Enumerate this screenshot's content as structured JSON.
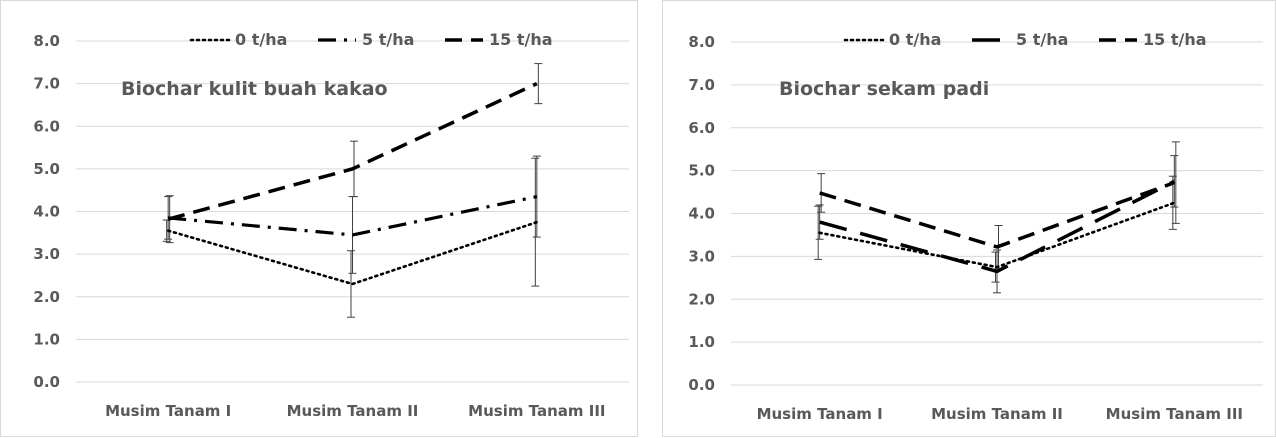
{
  "chart_data": [
    {
      "type": "line",
      "annotation": "Biochar kulit buah kakao",
      "categories": [
        "Musim Tanam I",
        "Musim Tanam II",
        "Musim Tanam III"
      ],
      "ylim": [
        0,
        8
      ],
      "yticks": [
        "0.0",
        "1.0",
        "2.0",
        "3.0",
        "4.0",
        "5.0",
        "6.0",
        "7.0",
        "8.0"
      ],
      "grid": true,
      "legend_position": "top",
      "series": [
        {
          "name": "0 t/ha",
          "style": "dotted",
          "values": [
            3.55,
            2.3,
            3.75
          ],
          "err": [
            0.25,
            0.78,
            1.5
          ]
        },
        {
          "name": "5 t/ha",
          "style": "dash-dot",
          "values": [
            3.85,
            3.45,
            4.35
          ],
          "err": [
            0.5,
            0.9,
            0.95
          ]
        },
        {
          "name": "15 t/ha",
          "style": "dashed",
          "values": [
            3.82,
            5.0,
            7.0
          ],
          "err": [
            0.55,
            0.65,
            0.47
          ]
        }
      ]
    },
    {
      "type": "line",
      "annotation": "Biochar sekam padi",
      "categories": [
        "Musim Tanam I",
        "Musim Tanam II",
        "Musim Tanam III"
      ],
      "ylim": [
        0,
        8
      ],
      "yticks": [
        "0.0",
        "1.0",
        "2.0",
        "3.0",
        "4.0",
        "5.0",
        "6.0",
        "7.0",
        "8.0"
      ],
      "grid": true,
      "legend_position": "top",
      "series": [
        {
          "name": "0 t/ha",
          "style": "dotted",
          "values": [
            3.55,
            2.75,
            4.25
          ],
          "err": [
            0.62,
            0.35,
            0.62
          ]
        },
        {
          "name": "5 t/ha",
          "style": "long-dash",
          "values": [
            3.8,
            2.65,
            4.75
          ],
          "err": [
            0.4,
            0.5,
            0.6
          ]
        },
        {
          "name": "15 t/ha",
          "style": "dashed",
          "values": [
            4.48,
            3.22,
            4.72
          ],
          "err": [
            0.45,
            0.5,
            0.95
          ]
        }
      ]
    }
  ]
}
